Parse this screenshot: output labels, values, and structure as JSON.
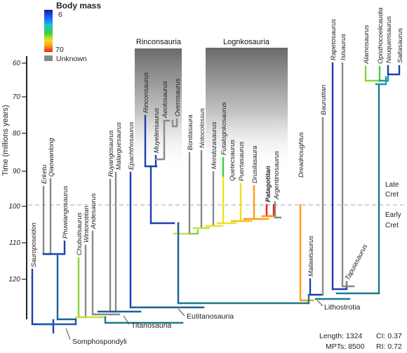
{
  "legend": {
    "title": "Body mass",
    "max_label": "6",
    "min_label": "70",
    "unknown_label": "Unknown",
    "gradient_colors": [
      "#1a1aa6",
      "#1a6cff",
      "#1ec8c8",
      "#3ad13a",
      "#f0e020",
      "#ff9a1a",
      "#e82010"
    ],
    "unknown_color": "#888888"
  },
  "axis": {
    "title": "Time (millions years)",
    "ticks": [
      "60",
      "70",
      "80",
      "90",
      "100",
      "110",
      "120"
    ]
  },
  "eras": {
    "late": "Late\nCret",
    "early": "Early\nCret"
  },
  "boxes": {
    "rinconsauria": "Rinconsauria",
    "lognkosauria": "Lognkosauria"
  },
  "taxa": {
    "sauroposeidon": "Sauroposeidon",
    "erketu": "Erketu",
    "qiaowanlong": "Qiaowanlong",
    "phuwiangosaurus": "Phuwiangosaurus",
    "chubutisaurus": "Chubutisaurus",
    "wintonotitan": "Wintonotitan",
    "andesaurus": "Andesaurus",
    "ruyangosaurus": "Ruyangosaurus",
    "malarguesaurus": "Malarguesaurus",
    "epachthosaurus": "Epachthosaurus",
    "rinconsaurus": "Rinconsaurus",
    "muyelensaurus": "Muyelensaurus",
    "aeolosaurus": "Aeolosaurus",
    "overosaurus": "Overosaurus",
    "bonitasaura": "Bonitasaura",
    "notocolossus": "Notocolossus",
    "mendozasaurus": "Mendozasaurus",
    "futalognkosaurus": "Futalognkosaurus",
    "quetecsaurus": "Quetecsaurus",
    "puertasaurus": "Puertasaurus",
    "drusilasaura": "Drusilasaura",
    "patagotitan": "Patagotitan",
    "argentinosaurus": "Argentinosaurus",
    "dreadnoughtus": "Dreadnoughtus",
    "malawisaurus": "Malawisaurus",
    "baurutitan": "Baurutitan",
    "rapetosaurus": "Rapetosaurus",
    "isisaurus": "Isisaurus",
    "tapuiasaurus": "Tapuiasaurus",
    "alamosaurus": "Alamosaurus",
    "opisthocoelicaudia": "Opisthocoelicaudia",
    "neuquensaurus": "Neuquensaurus",
    "saltasaurus": "Saltasaurus"
  },
  "clades": {
    "somphospondyli": "Somphospondyli",
    "titanosauria": "Titanosauria",
    "eutitanosauria": "Eutitanosauria",
    "lithostrotia": "Lithostrotia"
  },
  "stats": {
    "length": "Length: 1324",
    "ci": "CI: 0.37",
    "mpts": "MPTs: 8500",
    "ri": "RI: 0.72"
  }
}
